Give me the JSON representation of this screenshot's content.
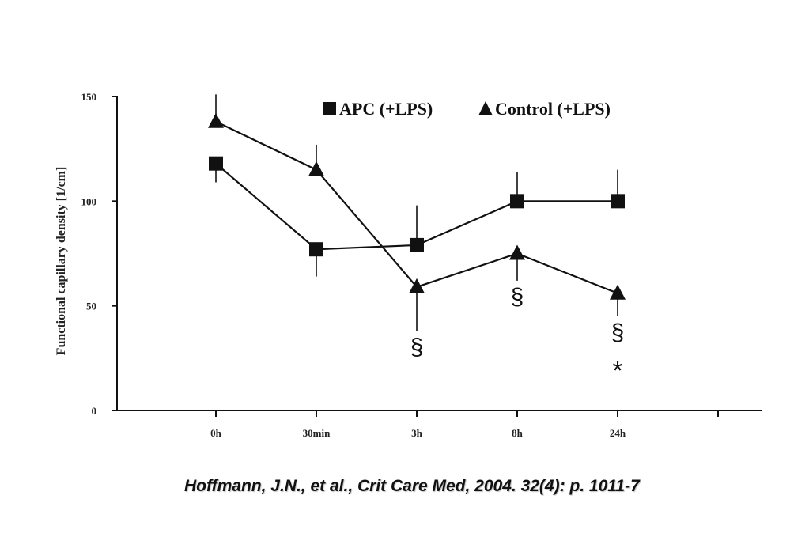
{
  "chart_data": {
    "type": "line",
    "categories": [
      "0h",
      "30min",
      "3h",
      "8h",
      "24h"
    ],
    "ylabel": "Functional capillary density [1/cm]",
    "ylim": [
      0,
      150
    ],
    "yticks": [
      "0",
      "50",
      "100",
      "150"
    ],
    "grid": false,
    "legend_position": "top-right",
    "series": [
      {
        "name": "APC (+LPS)",
        "marker": "square",
        "values": [
          118,
          77,
          79,
          100,
          100
        ],
        "err_up": [
          0,
          0,
          19,
          14,
          15
        ],
        "err_down": [
          9,
          13,
          0,
          0,
          0
        ]
      },
      {
        "name": "Control (+LPS)",
        "marker": "triangle",
        "values": [
          138,
          115,
          59,
          75,
          56
        ],
        "err_up": [
          13,
          12,
          0,
          0,
          0
        ],
        "err_down": [
          0,
          0,
          21,
          13,
          11
        ]
      }
    ],
    "annotations": [
      {
        "category": "3h",
        "text": "§"
      },
      {
        "category": "8h",
        "text": "§"
      },
      {
        "category": "24h",
        "text": "§"
      },
      {
        "category": "24h",
        "text": "*"
      }
    ]
  },
  "citation": "Hoffmann, J.N., et al., Crit Care Med, 2004. 32(4): p. 1011-7"
}
